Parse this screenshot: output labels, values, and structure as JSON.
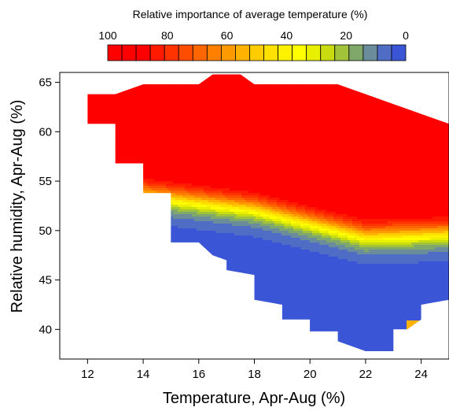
{
  "chart_data": {
    "type": "heatmap",
    "title": "",
    "xlabel": "Temperature, Apr-Aug (%)",
    "ylabel": "Relative humidity, Apr-Aug (%)",
    "xlim": [
      11,
      25
    ],
    "ylim": [
      37,
      66
    ],
    "xticks": [
      "12",
      "14",
      "16",
      "18",
      "20",
      "22",
      "24"
    ],
    "yticks": [
      "40",
      "45",
      "50",
      "55",
      "60",
      "65"
    ],
    "grid": false,
    "legend": {
      "title": "Relative importance of average temperature (%)",
      "placement": "top-center",
      "range": [
        100,
        0
      ],
      "ticks": [
        "100",
        "80",
        "60",
        "40",
        "20",
        "0"
      ],
      "colors": [
        "#ff0000",
        "#ff0000",
        "#ff0000",
        "#ff1a00",
        "#ff3300",
        "#ff4d00",
        "#ff6600",
        "#ff8000",
        "#ff9900",
        "#ffb200",
        "#ffcc00",
        "#ffe100",
        "#fff200",
        "#ffff00",
        "#e8f000",
        "#c8dc10",
        "#a2c23a",
        "#7fa86a",
        "#6b8c9a",
        "#4f6dc4",
        "#3a55d6"
      ]
    },
    "data_region": [
      [
        12,
        63.8
      ],
      [
        13,
        63.8
      ],
      [
        14,
        64.8
      ],
      [
        16,
        64.8
      ],
      [
        16.5,
        65.8
      ],
      [
        17.5,
        65.8
      ],
      [
        18,
        64.8
      ],
      [
        21,
        64.8
      ],
      [
        22,
        63.8
      ],
      [
        23,
        62.8
      ],
      [
        24,
        61.8
      ],
      [
        25,
        60.8
      ],
      [
        25,
        43
      ],
      [
        24,
        42.5
      ],
      [
        24,
        41
      ],
      [
        23.5,
        40
      ],
      [
        23,
        40
      ],
      [
        23,
        37.8
      ],
      [
        22,
        37.8
      ],
      [
        21,
        38.8
      ],
      [
        21,
        39.8
      ],
      [
        20,
        39.8
      ],
      [
        20,
        41
      ],
      [
        19,
        41
      ],
      [
        19,
        42.5
      ],
      [
        18,
        43
      ],
      [
        18,
        45.5
      ],
      [
        17,
        46
      ],
      [
        17,
        47
      ],
      [
        16.5,
        47.5
      ],
      [
        16,
        48.8
      ],
      [
        15,
        48.8
      ],
      [
        15,
        53.8
      ],
      [
        14,
        53.8
      ],
      [
        14,
        56.8
      ],
      [
        13,
        56.8
      ],
      [
        13,
        60.8
      ],
      [
        12,
        60.8
      ]
    ],
    "contour_field": "importance = 50 + 50 * tanh((humidity - boundary(temperature)) / 1.6), boundary = 53 - 0.35*(temperature-16) below 18 and ~49.5 at 22-25",
    "color_mapping": "red = 100% importance, blue = 0% importance"
  }
}
